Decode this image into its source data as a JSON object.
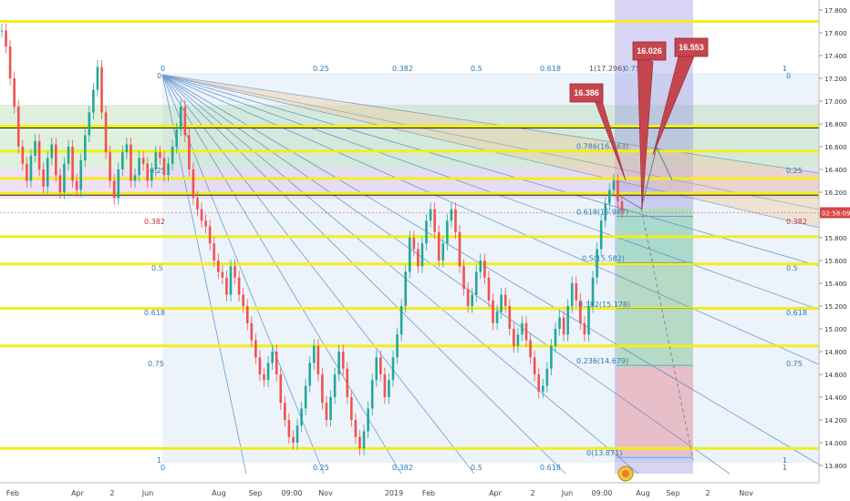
{
  "chart_data": {
    "type": "candlestick",
    "title": "",
    "ylim": [
      13.7,
      17.9
    ],
    "x_tick_labels": [
      "Feb",
      "Apr",
      "2",
      "Jun",
      "Aug",
      "Sep",
      "09:00",
      "Nov",
      "2019",
      "Feb",
      "Apr",
      "2",
      "Jun",
      "09:00",
      "Aug",
      "Sep",
      "2",
      "Nov"
    ],
    "y_tick_labels": [
      "17.800",
      "17.600",
      "17.400",
      "17.200",
      "17.000",
      "16.800",
      "16.600",
      "16.400",
      "16.200",
      "16.000",
      "15.800",
      "15.600",
      "15.400",
      "15.200",
      "15.000",
      "14.800",
      "14.600",
      "14.400",
      "14.200",
      "14.000",
      "13.800"
    ],
    "y_tick_values": [
      17.8,
      17.6,
      17.4,
      17.2,
      17.0,
      16.8,
      16.6,
      16.4,
      16.2,
      16.0,
      15.8,
      15.6,
      15.4,
      15.2,
      15.0,
      14.8,
      14.6,
      14.4,
      14.2,
      14.0,
      13.8
    ],
    "current_price_label": "02:58:09",
    "current_price": 16.02,
    "horizontal_levels": [
      17.7,
      16.78,
      16.56,
      16.32,
      16.19,
      15.81,
      15.57,
      15.18,
      14.85,
      13.95
    ],
    "fib_grid": {
      "top_labels": [
        "0",
        "0.25",
        "0.382",
        "0.5",
        "0.618",
        "1(17.296)",
        "0.75",
        "1"
      ],
      "bottom_labels": [
        "0",
        "0.25",
        "0.382",
        "0.5",
        "0.618",
        "1"
      ],
      "left_labels": [
        "0",
        "0.25",
        "0.382",
        "0.5",
        "0.618",
        "0.75",
        "1"
      ],
      "right_labels": [
        "0",
        "0.25",
        "0.382",
        "0.5",
        "0.618",
        "0.75",
        "1"
      ]
    },
    "fib_retracement": [
      {
        "label": "0.618(15.987)",
        "value": 15.987
      },
      {
        "label": "0.5(15.582)",
        "value": 15.582
      },
      {
        "label": "0.382(15.178)",
        "value": 15.178
      },
      {
        "label": "0.236(14.679)",
        "value": 14.679
      },
      {
        "label": "0(13.871)",
        "value": 13.871
      },
      {
        "label": "0.786(16.563)",
        "value": 16.563
      }
    ],
    "targets": [
      {
        "label": "16.386",
        "value": 16.386
      },
      {
        "label": "16.026",
        "value": 16.026
      },
      {
        "label": "16.553",
        "value": 16.553
      }
    ],
    "series": [
      {
        "values": [
          17.62,
          17.48,
          17.2,
          16.95,
          16.6,
          16.45,
          16.3,
          16.52,
          16.65,
          16.4,
          16.25,
          16.5,
          16.62,
          16.35,
          16.2,
          16.45,
          16.6,
          16.3,
          16.22,
          16.48,
          16.7,
          16.9,
          17.1,
          17.3,
          16.9,
          16.55,
          16.3,
          16.15,
          16.4,
          16.55,
          16.62,
          16.3,
          16.35,
          16.5,
          16.45,
          16.3,
          16.4,
          16.55,
          16.5,
          16.35,
          16.45,
          16.6,
          16.75,
          16.95,
          16.7,
          16.4,
          16.15,
          16.05,
          15.95,
          15.9,
          15.75,
          15.6,
          15.5,
          15.45,
          15.3,
          15.55,
          15.45,
          15.3,
          15.2,
          15.05,
          14.9,
          14.75,
          14.6,
          14.55,
          14.7,
          14.8,
          14.6,
          14.35,
          14.2,
          14.05,
          14.0,
          14.15,
          14.3,
          14.5,
          14.7,
          14.85,
          14.6,
          14.35,
          14.2,
          14.4,
          14.6,
          14.8,
          14.65,
          14.4,
          14.2,
          14.05,
          13.95,
          14.1,
          14.3,
          14.55,
          14.75,
          14.6,
          14.4,
          14.55,
          14.75,
          14.95,
          15.2,
          15.5,
          15.8,
          15.7,
          15.55,
          15.75,
          15.95,
          16.05,
          15.85,
          15.6,
          15.75,
          15.95,
          16.05,
          15.85,
          15.55,
          15.35,
          15.2,
          15.3,
          15.5,
          15.6,
          15.45,
          15.25,
          15.05,
          15.15,
          15.3,
          15.2,
          15.0,
          14.85,
          14.95,
          15.05,
          14.9,
          14.75,
          14.6,
          14.45,
          14.5,
          14.65,
          14.85,
          15.0,
          15.1,
          14.95,
          15.2,
          15.4,
          15.25,
          15.05,
          14.95,
          15.2,
          15.45,
          15.7,
          15.95,
          16.1,
          16.22,
          16.3,
          16.12,
          16.03
        ]
      }
    ]
  }
}
